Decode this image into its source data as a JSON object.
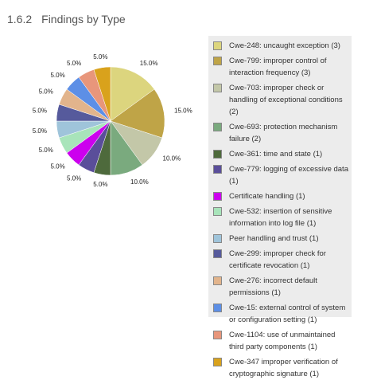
{
  "heading": {
    "number": "1.6.2",
    "title": "Findings by Type"
  },
  "chart_data": {
    "type": "pie",
    "categories": [
      "Cwe-248: uncaught exception (3)",
      "Cwe-799: improper control of interaction frequency (3)",
      "Cwe-703: improper check or handling of exceptional conditions (2)",
      "Cwe-693: protection mechanism failure (2)",
      "Cwe-361: time and state (1)",
      "Cwe-779: logging of excessive data (1)",
      "Certificate handling (1)",
      "Cwe-532: insertion of sensitive information into log file (1)",
      "Peer handling and trust (1)",
      "Cwe-299: improper check for certificate revocation (1)",
      "Cwe-276: incorrect default permissions (1)",
      "Cwe-15: external control of system or configuration setting (1)",
      "Cwe-1104: use of unmaintained third party components (1)",
      "Cwe-347 improper verification of cryptographic signature (1)"
    ],
    "values": [
      15,
      15,
      10,
      10,
      5,
      5,
      5,
      5,
      5,
      5,
      5,
      5,
      5,
      5
    ],
    "value_labels": [
      "15.0%",
      "15.0%",
      "10.0%",
      "10.0%",
      "5.0%",
      "5.0%",
      "5.0%",
      "5.0%",
      "5.0%",
      "5.0%",
      "5.0%",
      "5.0%",
      "5.0%",
      "5.0%"
    ],
    "colors": [
      "#dcd57e",
      "#bfa447",
      "#c3c7a8",
      "#7aaa7e",
      "#4e6a3c",
      "#5a4e9a",
      "#cc00ee",
      "#a8e4ba",
      "#9fc4da",
      "#565a9c",
      "#e2b48c",
      "#5d8fe6",
      "#e8967b",
      "#d9a21c"
    ]
  }
}
